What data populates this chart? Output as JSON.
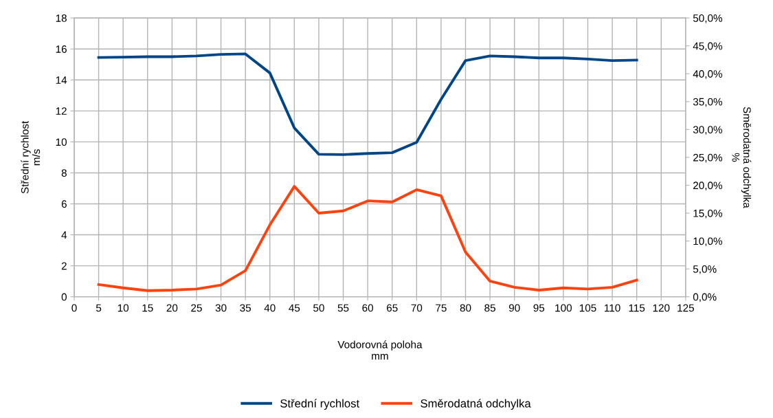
{
  "chart_data": {
    "type": "line",
    "xlabel": "Vodorovná poloha\nmm",
    "ylabel": "Střední rychlost\nm/s",
    "y2label": "Směrodatná odchylka\n%",
    "x": [
      5,
      10,
      15,
      20,
      25,
      30,
      35,
      40,
      45,
      50,
      55,
      60,
      65,
      70,
      75,
      80,
      85,
      90,
      95,
      100,
      105,
      110,
      115
    ],
    "series": [
      {
        "name": "Střední rychlost",
        "color": "#004586",
        "values": [
          15.45,
          15.47,
          15.5,
          15.5,
          15.55,
          15.65,
          15.68,
          14.45,
          10.9,
          9.2,
          9.18,
          9.25,
          9.3,
          9.97,
          12.75,
          15.25,
          15.55,
          15.5,
          15.42,
          15.42,
          15.35,
          15.25,
          15.28
        ]
      },
      {
        "name": "Směrodatná odchylka",
        "color": "#ff420e",
        "axis": "y2",
        "values": [
          2.2,
          1.6,
          1.1,
          1.2,
          1.4,
          2.1,
          4.7,
          12.9,
          19.8,
          15.0,
          15.4,
          17.2,
          17.0,
          19.2,
          18.1,
          8.0,
          2.8,
          1.7,
          1.2,
          1.6,
          1.4,
          1.7,
          3.0
        ]
      }
    ],
    "xlim": [
      0,
      125
    ],
    "xticks": [
      0,
      5,
      10,
      15,
      20,
      25,
      30,
      35,
      40,
      45,
      50,
      55,
      60,
      65,
      70,
      75,
      80,
      85,
      90,
      95,
      100,
      105,
      110,
      115,
      120,
      125
    ],
    "ylim": [
      0,
      18
    ],
    "yticks": [
      0,
      2,
      4,
      6,
      8,
      10,
      12,
      14,
      16,
      18
    ],
    "y2lim": [
      0,
      50
    ],
    "y2ticks": [
      {
        "value": 0,
        "label": "0,0%"
      },
      {
        "value": 5,
        "label": "5,0%"
      },
      {
        "value": 10,
        "label": "10,0%"
      },
      {
        "value": 15,
        "label": "15,0%"
      },
      {
        "value": 20,
        "label": "20,0%"
      },
      {
        "value": 25,
        "label": "25,0%"
      },
      {
        "value": 30,
        "label": "30,0%"
      },
      {
        "value": 35,
        "label": "35,0%"
      },
      {
        "value": 40,
        "label": "40,0%"
      },
      {
        "value": 45,
        "label": "45,0%"
      },
      {
        "value": 50,
        "label": "50,0%"
      }
    ],
    "grid": true,
    "legend": "bottom",
    "marker": "none",
    "line_style": "solid"
  }
}
